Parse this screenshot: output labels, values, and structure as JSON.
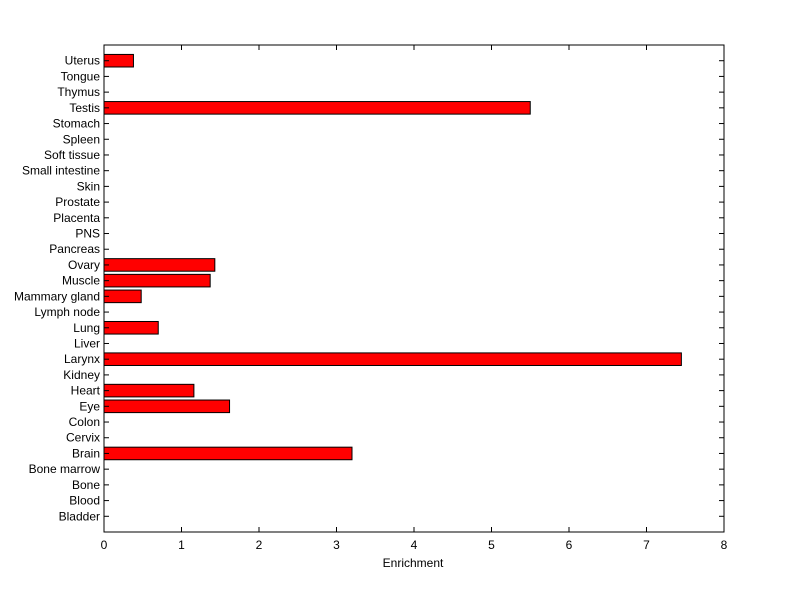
{
  "chart_data": {
    "type": "bar",
    "orientation": "horizontal",
    "categories": [
      "Bladder",
      "Blood",
      "Bone",
      "Bone marrow",
      "Brain",
      "Cervix",
      "Colon",
      "Eye",
      "Heart",
      "Kidney",
      "Larynx",
      "Liver",
      "Lung",
      "Lymph node",
      "Mammary gland",
      "Muscle",
      "Ovary",
      "Pancreas",
      "PNS",
      "Placenta",
      "Prostate",
      "Skin",
      "Small intestine",
      "Soft tissue",
      "Spleen",
      "Stomach",
      "Testis",
      "Thymus",
      "Tongue",
      "Uterus"
    ],
    "values": [
      0,
      0,
      0,
      0,
      3.2,
      0,
      0,
      1.62,
      1.16,
      0,
      7.45,
      0,
      0.7,
      0,
      0.48,
      1.37,
      1.43,
      0,
      0,
      0,
      0,
      0,
      0,
      0,
      0,
      0,
      5.5,
      0,
      0,
      0.38
    ],
    "xlabel": "Enrichment",
    "ylabel": "",
    "title": "",
    "xlim": [
      0,
      8
    ],
    "xticks": [
      0,
      1,
      2,
      3,
      4,
      5,
      6,
      7,
      8
    ],
    "grid": false,
    "bar_color": "#ff0000",
    "bar_edge_color": "#000000"
  }
}
